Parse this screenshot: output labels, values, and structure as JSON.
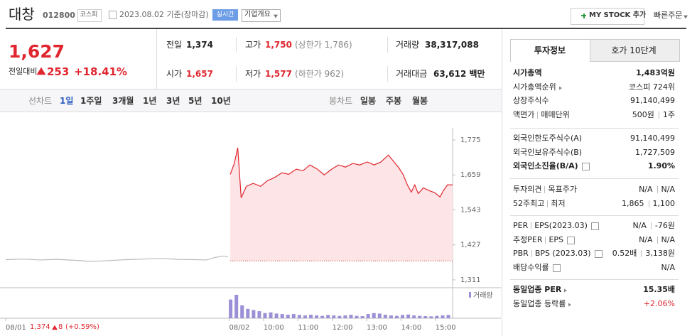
{
  "header": {
    "name": "대창",
    "code": "012800",
    "market": "코스피",
    "date": "2023.08.02 기준(장마감)",
    "realtime": "실시간",
    "company": "기업개요",
    "mystock": "MY STOCK 추가",
    "quick_order": "빠른주문"
  },
  "price": {
    "current": "1,627",
    "change_label": "전일대비",
    "change": "253",
    "rate": "+18.41%"
  },
  "summary": {
    "prev": {
      "label": "전일",
      "value": "1,374"
    },
    "open": {
      "label": "시가",
      "value": "1,657"
    },
    "high": {
      "label": "고가",
      "value": "1,750",
      "limit": "(상한가 1,786)"
    },
    "low": {
      "label": "저가",
      "value": "1,577",
      "limit": "(하한가 962)"
    },
    "volume": {
      "label": "거래량",
      "value": "38,317,088"
    },
    "amount": {
      "label": "거래대금",
      "value": "63,612 백만"
    }
  },
  "tabs": {
    "line_label": "선차트",
    "line_periods": [
      "1일",
      "1주일",
      "3개월",
      "1년",
      "3년",
      "5년",
      "10년"
    ],
    "candle_label": "봉차트",
    "candle_periods": [
      "일봉",
      "주봉",
      "월봉"
    ]
  },
  "footer": {
    "close": "1,374",
    "change": "8",
    "rate": "(+0.59%)"
  },
  "info_tabs": [
    "투자정보",
    "호가 10단계"
  ],
  "info": [
    [
      {
        "label": [
          "시가총액"
        ],
        "value": [
          "1,483억원"
        ]
      },
      {
        "label": [
          "시가총액순위"
        ],
        "value": [
          "코스피 724위"
        ]
      },
      {
        "label": [
          "상장주식수"
        ],
        "value": [
          "91,140,499"
        ]
      },
      {
        "label": [
          "액면가",
          "매매단위"
        ],
        "value": [
          "500원",
          "1주"
        ]
      }
    ],
    [
      {
        "label": [
          "외국인한도주식수(A)"
        ],
        "value": [
          "91,140,499"
        ]
      },
      {
        "label": [
          "외국인보유주식수(B)"
        ],
        "value": [
          "1,727,509"
        ]
      },
      {
        "label": [
          "외국인소진율(B/A)"
        ],
        "value": [
          "1.90%"
        ]
      }
    ],
    [
      {
        "label": [
          "투자의견",
          "목표주가"
        ],
        "value": [
          "N/A",
          "N/A"
        ]
      },
      {
        "label": [
          "52주최고",
          "최저"
        ],
        "value": [
          "1,865",
          "1,100"
        ]
      }
    ],
    [
      {
        "label": [
          "PER",
          "EPS(2023.03)"
        ],
        "value": [
          "N/A",
          "-76원"
        ]
      },
      {
        "label": [
          "추정PER",
          "EPS"
        ],
        "value": [
          "N/A",
          "N/A"
        ]
      },
      {
        "label": [
          "PBR",
          "BPS (2023.03)"
        ],
        "value": [
          "0.52배",
          "3,138원"
        ]
      },
      {
        "label": [
          "배당수익률"
        ],
        "value": [
          "N/A"
        ]
      }
    ],
    [
      {
        "label": [
          "동일업종 PER"
        ],
        "value": [
          "15.35배"
        ]
      },
      {
        "label": [
          "동일업종 등락률"
        ],
        "value": [
          "+2.06%"
        ]
      }
    ]
  ],
  "chart_data": [
    {
      "type": "line",
      "xlim": [
        0,
        780
      ],
      "ylim": [
        1285,
        1815
      ],
      "xticks": [
        {
          "value": 0,
          "label": "08/01"
        },
        {
          "value": 390,
          "label": "08/02"
        },
        {
          "value": 450,
          "label": "10:00"
        },
        {
          "value": 510,
          "label": "11:00"
        },
        {
          "value": 570,
          "label": "12:00"
        },
        {
          "value": 630,
          "label": "13:00"
        },
        {
          "value": 690,
          "label": "14:00"
        },
        {
          "value": 750,
          "label": "15:00"
        }
      ],
      "yticks": [
        {
          "value": 1311,
          "label": "1,311"
        },
        {
          "value": 1427,
          "label": "1,427"
        },
        {
          "value": 1543,
          "label": "1,543"
        },
        {
          "value": 1659,
          "label": "1,659"
        },
        {
          "value": 1775,
          "label": "1,775"
        }
      ],
      "baseline": 1374,
      "series": [
        {
          "color": "#bbbbbb",
          "x": [
            0,
            30,
            60,
            90,
            120,
            150,
            180,
            210,
            240,
            270,
            300,
            330,
            350,
            365,
            380,
            388
          ],
          "values": [
            1378,
            1380,
            1377,
            1379,
            1376,
            1372,
            1375,
            1378,
            1380,
            1382,
            1379,
            1378,
            1377,
            1385,
            1390,
            1387
          ]
        },
        {
          "color": "#e0262f",
          "fill": "#fde4e6",
          "x": [
            392,
            399,
            405,
            411,
            420,
            432,
            445,
            457,
            469,
            482,
            494,
            507,
            519,
            531,
            544,
            556,
            569,
            581,
            593,
            606,
            618,
            631,
            643,
            655,
            668,
            676,
            686,
            694,
            701,
            708,
            714,
            720,
            729,
            739,
            749,
            758,
            764,
            771,
            780
          ],
          "values": [
            1661,
            1697,
            1749,
            1583,
            1621,
            1631,
            1621,
            1640,
            1650,
            1666,
            1661,
            1678,
            1673,
            1692,
            1678,
            1659,
            1678,
            1692,
            1685,
            1697,
            1692,
            1702,
            1692,
            1702,
            1725,
            1706,
            1683,
            1659,
            1626,
            1602,
            1626,
            1597,
            1616,
            1607,
            1600,
            1586,
            1607,
            1626,
            1626
          ]
        }
      ]
    },
    {
      "type": "bar",
      "title": "거래량",
      "color": "#9b8fd6",
      "xlim": [
        0,
        780
      ],
      "ylim": [
        0,
        100
      ],
      "x": [
        392,
        402,
        412,
        422,
        432,
        442,
        452,
        462,
        472,
        482,
        492,
        502,
        512,
        522,
        532,
        542,
        552,
        562,
        572,
        582,
        592,
        602,
        612,
        622,
        632,
        642,
        652,
        662,
        672,
        682,
        692,
        702,
        712,
        722,
        732,
        742,
        752,
        762,
        772
      ],
      "values": [
        80,
        100,
        55,
        40,
        35,
        30,
        22,
        25,
        20,
        18,
        15,
        18,
        14,
        12,
        15,
        12,
        10,
        14,
        12,
        10,
        12,
        15,
        10,
        9,
        18,
        22,
        20,
        15,
        12,
        10,
        14,
        16,
        12,
        10,
        9,
        8,
        10,
        12,
        14
      ]
    }
  ]
}
